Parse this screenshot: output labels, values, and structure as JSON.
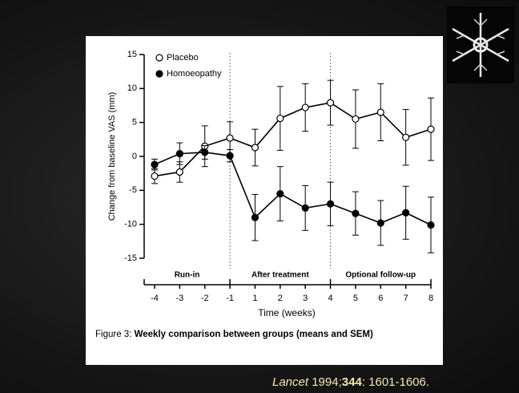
{
  "chart_data": {
    "type": "line",
    "x_label": "Time (weeks)",
    "y_label": "Change from baseline VAS (mm)",
    "categories": [
      "-4",
      "-3",
      "-2",
      "-1",
      "1",
      "2",
      "3",
      "4",
      "5",
      "6",
      "7",
      "8"
    ],
    "phases": [
      "Run-in",
      "After treatment",
      "Optional follow-up"
    ],
    "series": [
      {
        "name": "Placebo",
        "color": "#000000",
        "marker_fill": "#ffffff",
        "values": [
          -2.9,
          -2.3,
          1.5,
          2.7,
          1.3,
          5.6,
          7.2,
          7.9,
          5.5,
          6.5,
          2.8,
          4.0
        ],
        "errors": [
          1.1,
          1.5,
          3.0,
          2.4,
          2.7,
          4.7,
          3.5,
          3.3,
          4.3,
          4.2,
          4.1,
          4.6
        ]
      },
      {
        "name": "Homoeopathy",
        "color": "#000000",
        "marker_fill": "#000000",
        "values": [
          -1.2,
          0.4,
          0.6,
          0.1,
          -9.0,
          -5.5,
          -7.6,
          -7.0,
          -8.4,
          -9.8,
          -8.3,
          -10.1
        ],
        "errors": [
          0.8,
          1.6,
          1.0,
          0.9,
          3.4,
          4.0,
          3.3,
          3.2,
          3.2,
          3.3,
          3.9,
          4.1
        ]
      }
    ],
    "ylim": [
      -15,
      15
    ],
    "yticks": [
      -15,
      -10,
      -5,
      0,
      5,
      10,
      15
    ],
    "caption_label": "Figure 3:",
    "caption_text": "Weekly comparison between groups (means and SEM)"
  },
  "citation": {
    "journal": "Lancet",
    "year": "1994;",
    "volume": "344",
    "pages": ": 1601-1606."
  }
}
